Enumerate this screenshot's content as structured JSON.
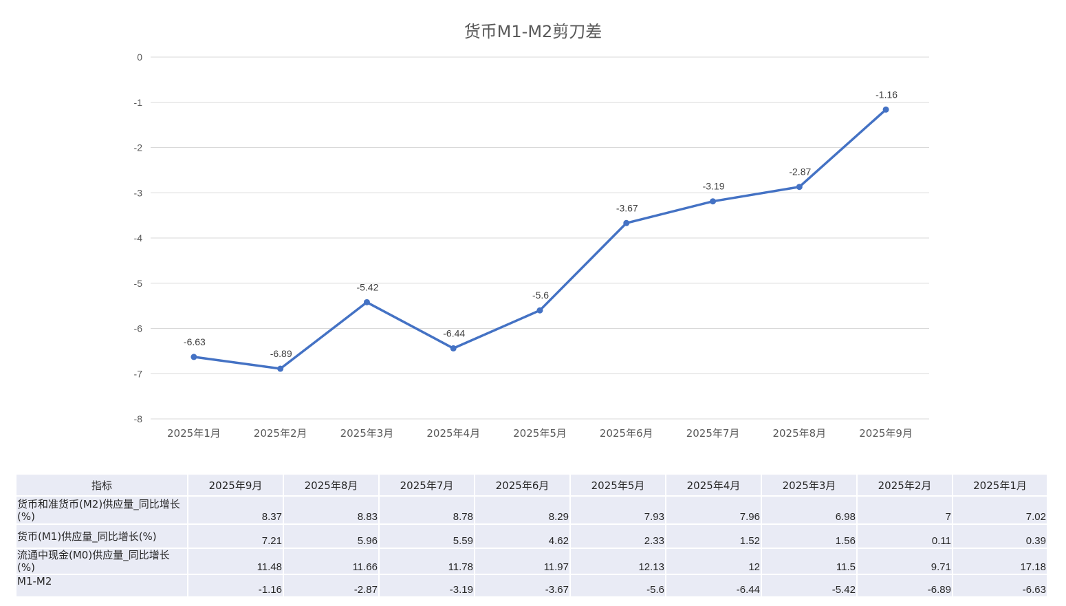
{
  "chart_data": {
    "type": "line",
    "title": "货币M1-M2剪刀差",
    "categories": [
      "2025年1月",
      "2025年2月",
      "2025年3月",
      "2025年4月",
      "2025年5月",
      "2025年6月",
      "2025年7月",
      "2025年8月",
      "2025年9月"
    ],
    "series": [
      {
        "values": [
          -6.63,
          -6.89,
          -5.42,
          -6.44,
          -5.6,
          -3.67,
          -3.19,
          -2.87,
          -1.16
        ],
        "color": "#4472c4"
      }
    ],
    "data_labels": [
      "-6.63",
      "-6.89",
      "-5.42",
      "-6.44",
      "-5.6",
      "-3.67",
      "-3.19",
      "-2.87",
      "-1.16"
    ],
    "ylim": [
      -8,
      0
    ],
    "yticks": [
      "0",
      "-1",
      "-2",
      "-3",
      "-4",
      "-5",
      "-6",
      "-7",
      "-8"
    ],
    "grid": true,
    "legend": "none"
  },
  "table": {
    "header": [
      "指标",
      "2025年9月",
      "2025年8月",
      "2025年7月",
      "2025年6月",
      "2025年5月",
      "2025年4月",
      "2025年3月",
      "2025年2月",
      "2025年1月"
    ],
    "rows": [
      {
        "label": "货币和准货币(M2)供应量_同比增长(%)",
        "values": [
          "8.37",
          "8.83",
          "8.78",
          "8.29",
          "7.93",
          "7.96",
          "6.98",
          "7",
          "7.02"
        ]
      },
      {
        "label": "货币(M1)供应量_同比增长(%)",
        "values": [
          "7.21",
          "5.96",
          "5.59",
          "4.62",
          "2.33",
          "1.52",
          "1.56",
          "0.11",
          "0.39"
        ]
      },
      {
        "label": "流通中现金(M0)供应量_同比增长(%)",
        "values": [
          "11.48",
          "11.66",
          "11.78",
          "11.97",
          "12.13",
          "12",
          "11.5",
          "9.71",
          "17.18"
        ]
      },
      {
        "label": "M1-M2",
        "values": [
          "-1.16",
          "-2.87",
          "-3.19",
          "-3.67",
          "-5.6",
          "-6.44",
          "-5.42",
          "-6.89",
          "-6.63"
        ]
      }
    ]
  }
}
